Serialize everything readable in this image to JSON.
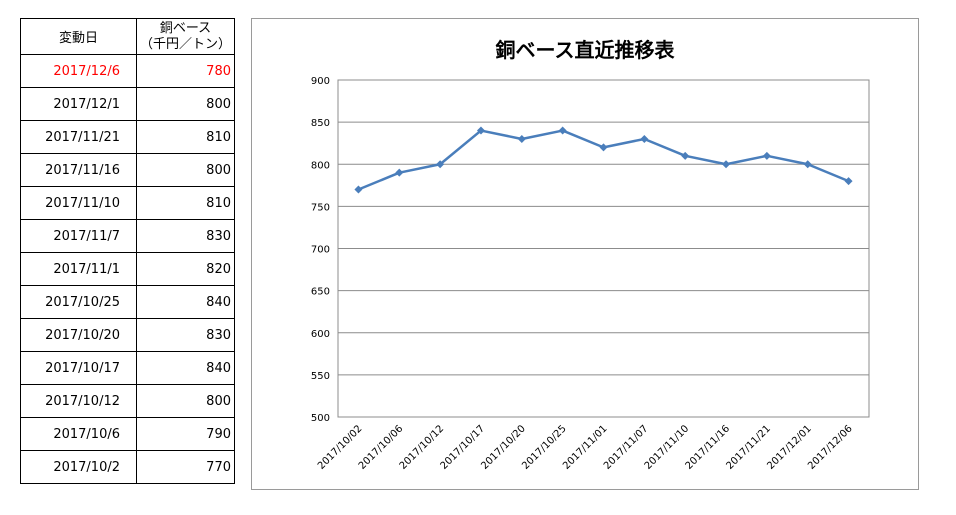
{
  "table": {
    "header_date": "変動日",
    "header_price_line1": "銅ベース",
    "header_price_line2": "（千円／トン）",
    "highlight_color": "#ff0000",
    "rows": [
      {
        "date": "2017/12/6",
        "price": "780",
        "highlight": true
      },
      {
        "date": "2017/12/1",
        "price": "800",
        "highlight": false
      },
      {
        "date": "2017/11/21",
        "price": "810",
        "highlight": false
      },
      {
        "date": "2017/11/16",
        "price": "800",
        "highlight": false
      },
      {
        "date": "2017/11/10",
        "price": "810",
        "highlight": false
      },
      {
        "date": "2017/11/7",
        "price": "830",
        "highlight": false
      },
      {
        "date": "2017/11/1",
        "price": "820",
        "highlight": false
      },
      {
        "date": "2017/10/25",
        "price": "840",
        "highlight": false
      },
      {
        "date": "2017/10/20",
        "price": "830",
        "highlight": false
      },
      {
        "date": "2017/10/17",
        "price": "840",
        "highlight": false
      },
      {
        "date": "2017/10/12",
        "price": "800",
        "highlight": false
      },
      {
        "date": "2017/10/6",
        "price": "790",
        "highlight": false
      },
      {
        "date": "2017/10/2",
        "price": "770",
        "highlight": false
      }
    ]
  },
  "chart_data": {
    "type": "line",
    "title": "銅ベース直近推移表",
    "xlabel": "",
    "ylabel": "",
    "categories": [
      "2017/10/02",
      "2017/10/06",
      "2017/10/12",
      "2017/10/17",
      "2017/10/20",
      "2017/10/25",
      "2017/11/01",
      "2017/11/07",
      "2017/11/10",
      "2017/11/16",
      "2017/11/21",
      "2017/12/01",
      "2017/12/06"
    ],
    "series": [
      {
        "values": [
          770,
          790,
          800,
          840,
          830,
          840,
          820,
          830,
          810,
          800,
          810,
          800,
          780
        ],
        "color": "#4a7ebb"
      }
    ],
    "ylim": [
      500,
      900
    ],
    "yticks": [
      500,
      550,
      600,
      650,
      700,
      750,
      800,
      850,
      900
    ],
    "grid": true,
    "legend": "none"
  }
}
